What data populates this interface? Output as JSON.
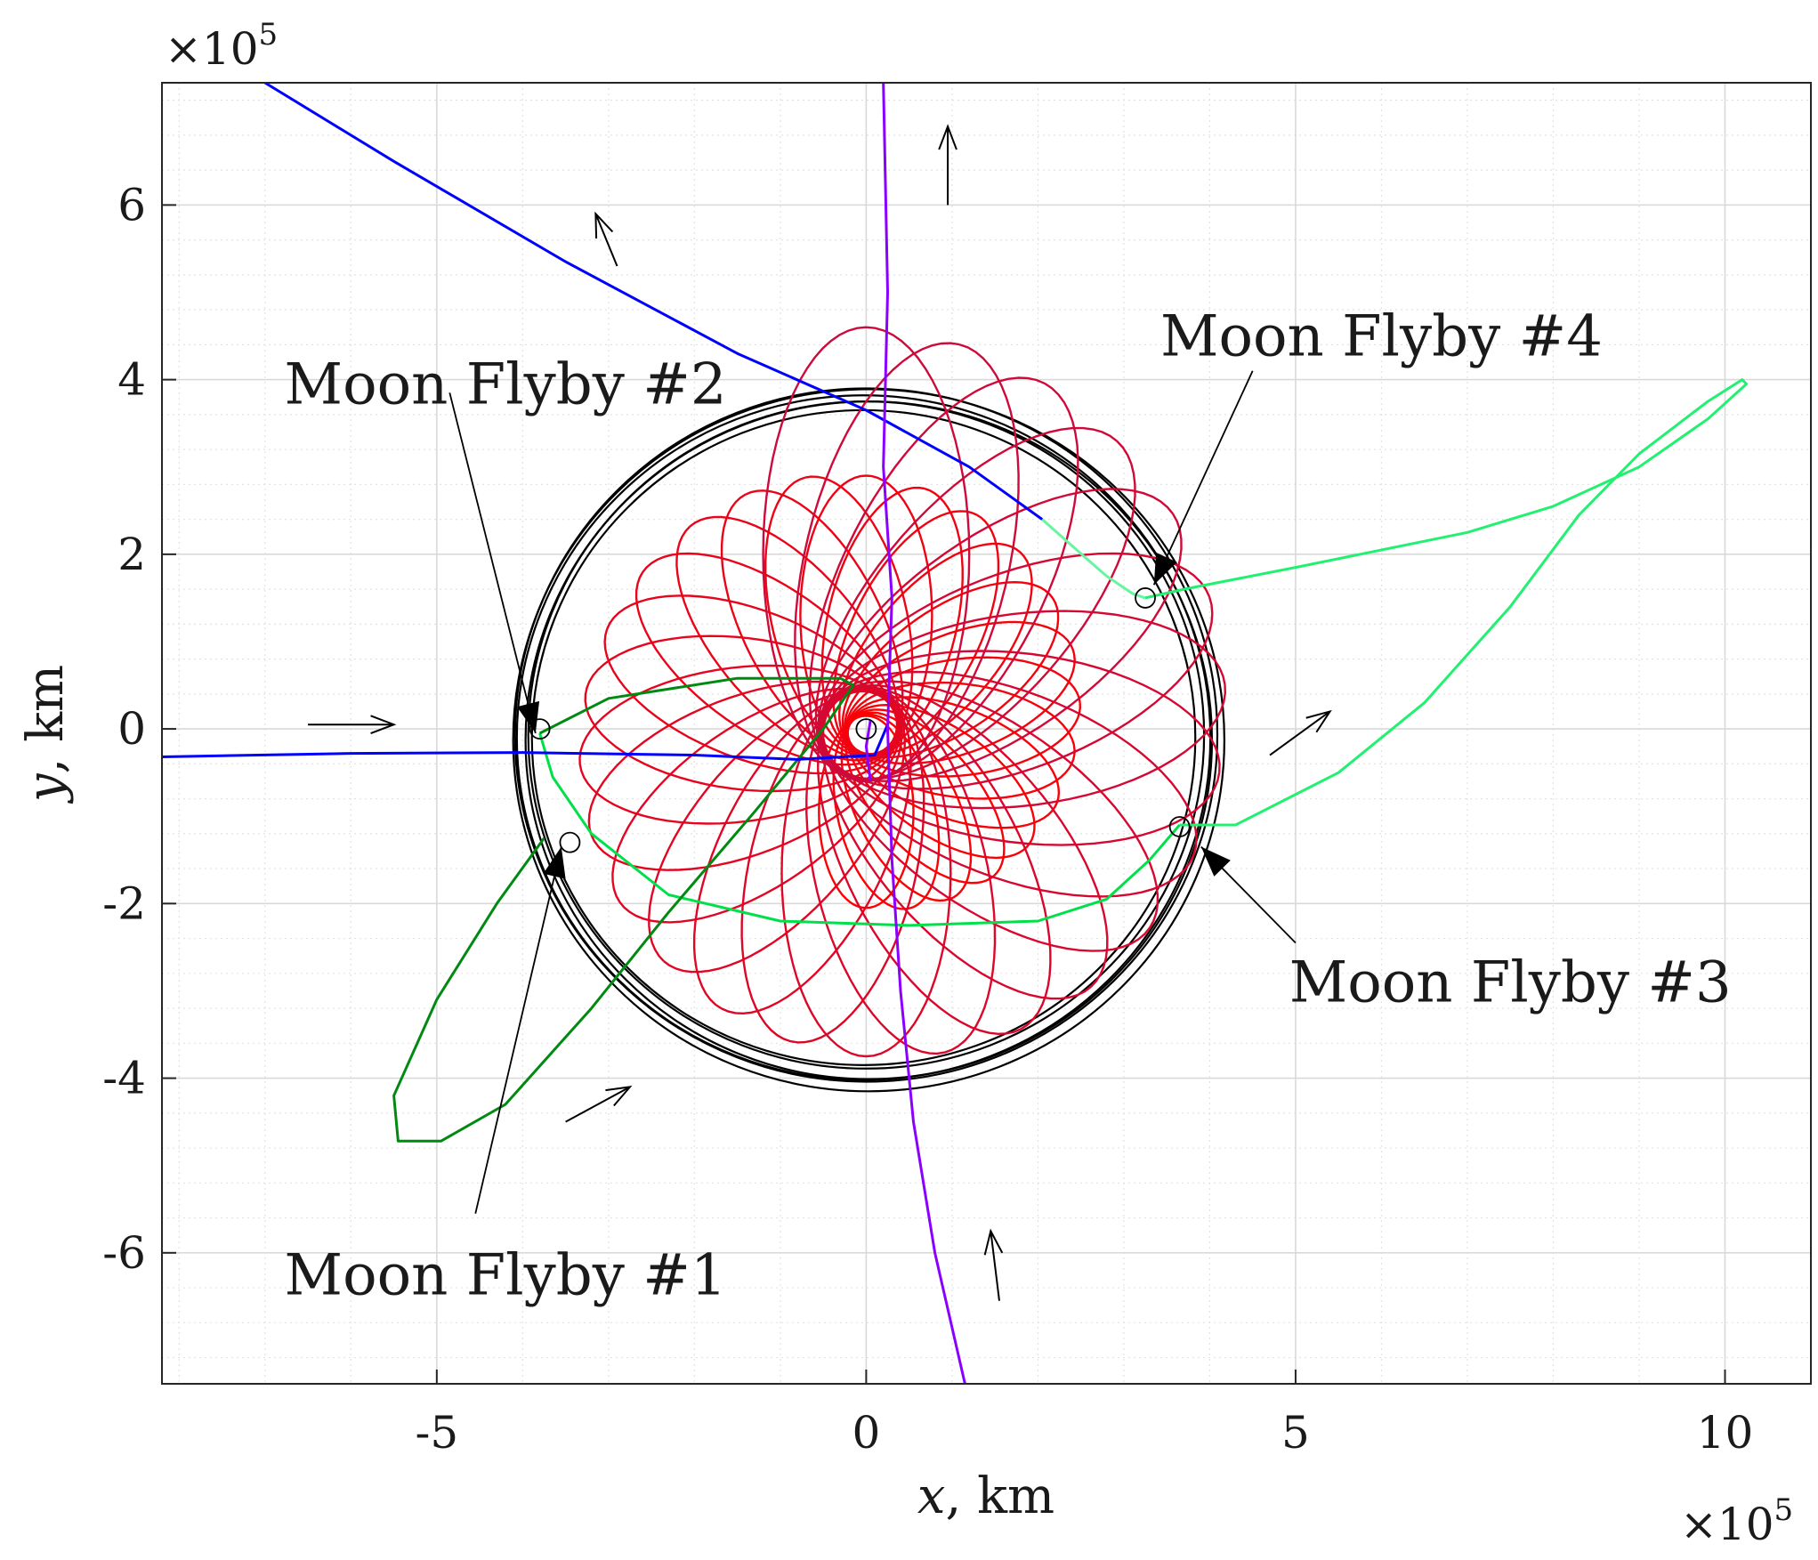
{
  "chart_data": {
    "type": "line",
    "xlabel_var": "x",
    "xlabel_unit": ", km",
    "ylabel_var": "y",
    "ylabel_unit": ", km",
    "x_multiplier": "×10",
    "x_multiplier_exp": "5",
    "y_multiplier": "×10",
    "y_multiplier_exp": "5",
    "xlim": [
      -8.2,
      11.0
    ],
    "ylim": [
      -7.5,
      7.4
    ],
    "scale": 100000,
    "grid": true,
    "minor_grid": true,
    "x_ticks": [
      -5,
      0,
      5,
      10
    ],
    "x_tick_labels": [
      "-5",
      "0",
      "5",
      "10"
    ],
    "y_ticks": [
      -6,
      -4,
      -2,
      0,
      2,
      4,
      6
    ],
    "y_tick_labels": [
      "-6",
      "-4",
      "-2",
      "0",
      "2",
      "4",
      "6"
    ],
    "colors": {
      "moon_orbit": "#000000",
      "spiral_early": "#ff0000",
      "spiral_late": "#cc0a3c",
      "flyby_arc_1": "#008a12",
      "flyby_arc_2": "#00e04a",
      "flyby_arc_3": "#22f070",
      "flyby_arc_4": "#66f5a0",
      "departure": "#0000ff",
      "moon_track": "#8a00ff",
      "arrow": "#000000"
    },
    "series": [
      {
        "key": "departure",
        "points": [
          [
            -7.0,
            7.4
          ],
          [
            -5.5,
            6.5
          ],
          [
            -3.5,
            5.35
          ],
          [
            -1.5,
            4.3
          ],
          [
            0.0,
            3.65
          ],
          [
            1.2,
            3.0
          ],
          [
            2.05,
            2.4
          ]
        ]
      },
      {
        "key": "flyby_arc_4",
        "points": [
          [
            2.05,
            2.4
          ],
          [
            2.45,
            2.05
          ],
          [
            2.8,
            1.75
          ],
          [
            3.1,
            1.55
          ],
          [
            3.25,
            1.5
          ]
        ]
      },
      {
        "key": "flyby_arc_3",
        "points": [
          [
            3.25,
            1.5
          ],
          [
            3.7,
            1.6
          ],
          [
            5.0,
            1.85
          ],
          [
            7.0,
            2.25
          ],
          [
            8.0,
            2.55
          ],
          [
            9.0,
            3.0
          ],
          [
            9.8,
            3.55
          ],
          [
            10.25,
            3.95
          ],
          [
            10.2,
            4.0
          ],
          [
            9.8,
            3.75
          ],
          [
            9.0,
            3.15
          ],
          [
            8.3,
            2.45
          ],
          [
            7.5,
            1.4
          ],
          [
            6.5,
            0.3
          ],
          [
            5.5,
            -0.5
          ],
          [
            4.3,
            -1.1
          ],
          [
            3.65,
            -1.1
          ]
        ]
      },
      {
        "key": "flyby_arc_2",
        "points": [
          [
            3.65,
            -1.1
          ],
          [
            3.3,
            -1.5
          ],
          [
            2.8,
            -1.95
          ],
          [
            2.0,
            -2.2
          ],
          [
            0.5,
            -2.25
          ],
          [
            -1.0,
            -2.2
          ],
          [
            -2.3,
            -1.9
          ],
          [
            -3.2,
            -1.2
          ],
          [
            -3.65,
            -0.55
          ],
          [
            -3.8,
            -0.05
          ]
        ]
      },
      {
        "key": "flyby_arc_1",
        "points": [
          [
            -3.8,
            -0.05
          ],
          [
            -3.0,
            0.35
          ],
          [
            -1.5,
            0.58
          ],
          [
            -0.3,
            0.58
          ],
          [
            -0.15,
            0.5
          ],
          [
            -0.5,
            0.0
          ],
          [
            -1.3,
            -0.95
          ],
          [
            -2.3,
            -2.1
          ],
          [
            -3.2,
            -3.2
          ],
          [
            -4.2,
            -4.3
          ],
          [
            -4.95,
            -4.72
          ],
          [
            -5.45,
            -4.72
          ],
          [
            -5.5,
            -4.2
          ],
          [
            -5.0,
            -3.1
          ],
          [
            -4.3,
            -2.0
          ],
          [
            -3.75,
            -1.25
          ]
        ]
      },
      {
        "key": "departure",
        "points": [
          [
            -8.2,
            -0.32
          ],
          [
            -6.0,
            -0.28
          ],
          [
            -4.0,
            -0.27
          ],
          [
            -2.0,
            -0.3
          ],
          [
            -0.8,
            -0.35
          ],
          [
            0.1,
            -0.3
          ],
          [
            0.25,
            0.05
          ]
        ]
      },
      {
        "key": "moon_track",
        "points": [
          [
            0.2,
            7.4
          ],
          [
            0.25,
            5.0
          ],
          [
            0.2,
            3.0
          ],
          [
            0.3,
            1.5
          ],
          [
            0.25,
            0.0
          ],
          [
            0.3,
            -1.5
          ],
          [
            0.4,
            -3.0
          ],
          [
            0.55,
            -4.5
          ],
          [
            0.8,
            -6.0
          ],
          [
            1.15,
            -7.5
          ]
        ]
      },
      {
        "key": "moon_track",
        "points": [
          [
            0.05,
            0.1
          ],
          [
            0.0,
            -0.2
          ],
          [
            0.05,
            -0.6
          ]
        ]
      }
    ],
    "spiral": {
      "center": [
        0.0,
        0.0
      ],
      "loops": 40
    },
    "moon_orbit_rings": {
      "center": [
        0.0,
        -0.1
      ],
      "radii": [
        3.75,
        3.82,
        3.88,
        3.92,
        3.97,
        4.02
      ],
      "rx_scale": 1.03
    },
    "markers": [
      [
        0.0,
        0.0
      ],
      [
        -3.8,
        0.0
      ],
      [
        -3.45,
        -1.3
      ],
      [
        3.65,
        -1.12
      ],
      [
        3.25,
        1.5
      ]
    ],
    "flow_arrows": [
      [
        [
          -6.5,
          0.05
        ],
        [
          -5.5,
          0.05
        ]
      ],
      [
        [
          -2.9,
          5.3
        ],
        [
          -3.15,
          5.9
        ]
      ],
      [
        [
          0.95,
          6.0
        ],
        [
          0.95,
          6.9
        ]
      ],
      [
        [
          4.7,
          -0.3
        ],
        [
          5.4,
          0.2
        ]
      ],
      [
        [
          -3.5,
          -4.5
        ],
        [
          -2.75,
          -4.1
        ]
      ],
      [
        [
          1.55,
          -6.55
        ],
        [
          1.45,
          -5.75
        ]
      ]
    ],
    "annotations": [
      {
        "text": "Moon Flyby #1",
        "anchor": [
          -4.2,
          -6.25
        ],
        "arrow_from": [
          -4.55,
          -5.55
        ],
        "arrow_to": [
          -3.55,
          -1.35
        ]
      },
      {
        "text": "Moon Flyby #2",
        "anchor": [
          -4.2,
          3.95
        ],
        "arrow_from": [
          -4.85,
          3.85
        ],
        "arrow_to": [
          -3.85,
          -0.05
        ]
      },
      {
        "text": "Moon Flyby #3",
        "anchor": [
          7.5,
          -2.9
        ],
        "arrow_from": [
          5.0,
          -2.45
        ],
        "arrow_to": [
          3.9,
          -1.35
        ]
      },
      {
        "text": "Moon Flyby #4",
        "anchor": [
          6.0,
          4.5
        ],
        "arrow_from": [
          4.5,
          4.1
        ],
        "arrow_to": [
          3.35,
          1.65
        ]
      }
    ]
  }
}
